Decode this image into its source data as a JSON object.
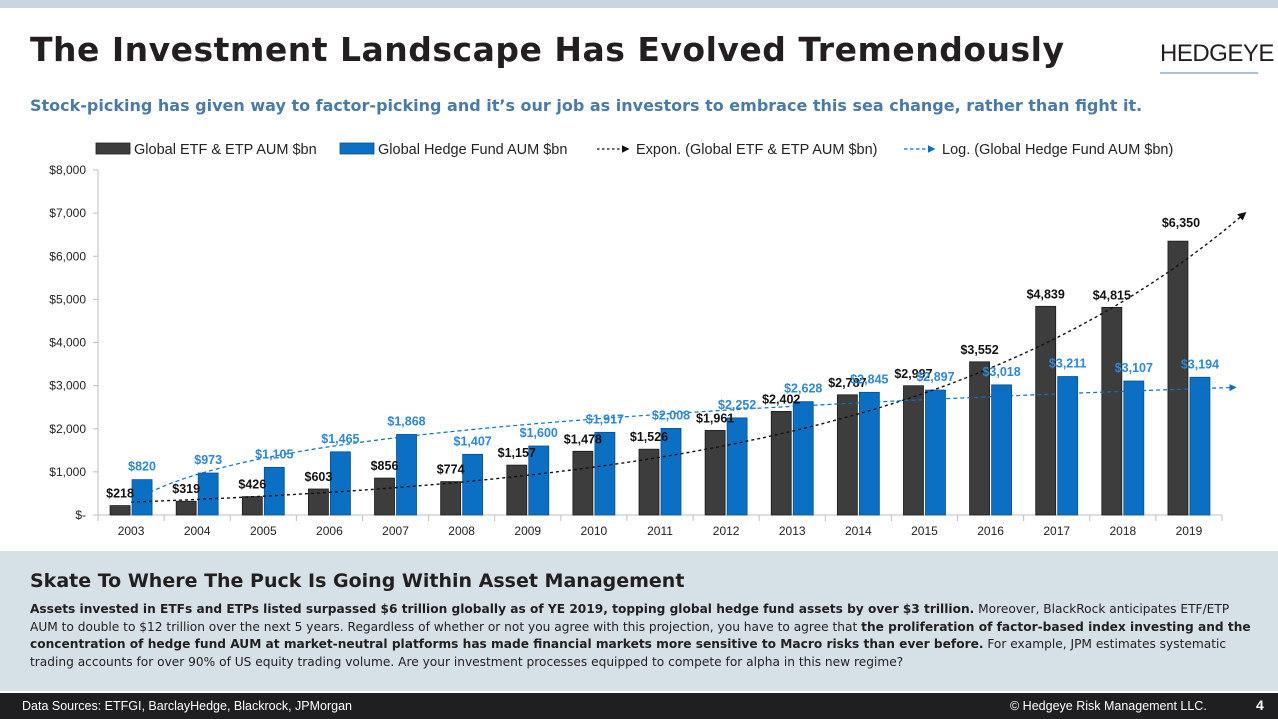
{
  "slide": {
    "title": "The Investment Landscape Has Evolved Tremendously",
    "logo": "HEDGEYE",
    "subtitle": "Stock-picking has given way to factor-picking and it’s our job as investors to embrace this sea change, rather than fight it."
  },
  "panel": {
    "heading": "Skate To Where The Puck Is Going Within Asset Management",
    "para_bold_1": "Assets invested in ETFs and ETPs listed surpassed $6 trillion globally as of YE 2019, topping global hedge fund assets by over $3 trillion.",
    "para_text_1": " Moreover, BlackRock anticipates ETF/ETP AUM to double to $12 trillion over the next 5 years. Regardless of whether or not you agree with this projection, you have to agree that ",
    "para_bold_2": "the proliferation of factor-based index investing and the concentration of hedge fund AUM at market-neutral platforms has made financial markets more sensitive to Macro risks than ever before.",
    "para_text_2": " For example, JPM estimates systematic trading accounts for over 90% of US equity trading volume. Are your investment processes equipped to compete for alpha in this new regime?"
  },
  "footer": {
    "sources": "Data Sources: ETFGI, BarclayHedge, Blackrock, JPMorgan",
    "copyright": "© Hedgeye Risk Management LLC.",
    "page": "4"
  },
  "colors": {
    "etf": "#3d3d3d",
    "hf": "#0b6fc4",
    "hf_label": "#2f86d3",
    "accent": "#4a7aa6"
  },
  "chart_data": {
    "type": "bar",
    "categories": [
      "2003",
      "2004",
      "2005",
      "2006",
      "2007",
      "2008",
      "2009",
      "2010",
      "2011",
      "2012",
      "2013",
      "2014",
      "2015",
      "2016",
      "2017",
      "2018",
      "2019"
    ],
    "series": [
      {
        "name": "Global ETF & ETP AUM $bn",
        "values": [
          218,
          319,
          426,
          603,
          856,
          774,
          1157,
          1478,
          1526,
          1961,
          2402,
          2787,
          2997,
          3552,
          4839,
          4815,
          6350
        ],
        "labels": [
          "$218",
          "$319",
          "$426",
          "$603",
          "$856",
          "$774",
          "$1,157",
          "$1,478",
          "$1,526",
          "$1,961",
          "$2,402",
          "$2,787",
          "$2,997",
          "$3,552",
          "$4,839",
          "$4,815",
          "$6,350"
        ]
      },
      {
        "name": "Global Hedge Fund AUM $bn",
        "values": [
          820,
          973,
          1105,
          1465,
          1868,
          1407,
          1600,
          1917,
          2008,
          2252,
          2628,
          2845,
          2897,
          3018,
          3211,
          3107,
          3194
        ],
        "labels": [
          "$820",
          "$973",
          "$1,105",
          "$1,465",
          "$1,868",
          "$1,407",
          "$1,600",
          "$1,917",
          "$2,008",
          "$2,252",
          "$2,628",
          "$2,845",
          "$2,897",
          "$3,018",
          "$3,211",
          "$3,107",
          "$3,194"
        ]
      }
    ],
    "trendlines": [
      {
        "name": "Expon. (Global ETF & ETP AUM $bn)",
        "type": "exponential",
        "of_series": 0,
        "start": 300,
        "end": 7000
      },
      {
        "name": "Log. (Global Hedge Fund AUM $bn)",
        "type": "logarithmic",
        "of_series": 1,
        "start": 300,
        "end": 2960
      }
    ],
    "legend": [
      "Global ETF & ETP AUM $bn",
      "Global Hedge Fund AUM $bn",
      "Expon. (Global ETF & ETP AUM $bn)",
      "Log. (Global Hedge Fund AUM $bn)"
    ],
    "yticks": [
      "$-",
      "$1,000",
      "$2,000",
      "$3,000",
      "$4,000",
      "$5,000",
      "$6,000",
      "$7,000",
      "$8,000"
    ],
    "ylim": [
      0,
      8000
    ],
    "legend_position": "top"
  }
}
